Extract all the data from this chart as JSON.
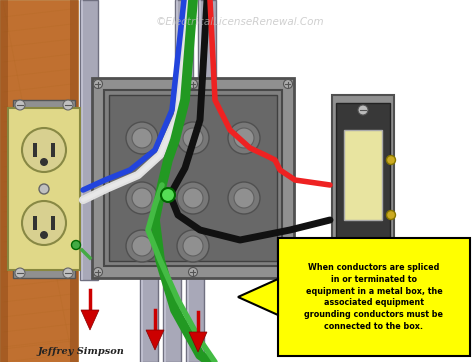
{
  "figsize": [
    4.74,
    3.62
  ],
  "dpi": 100,
  "bg_color": "#ffffff",
  "watermark_text": "©ElectricalLicenseRenewal.Com",
  "watermark_color": "#bbbbbb",
  "author_text": "Jeffrey Simpson",
  "author_color": "#222222",
  "callout_text": "When conductors are spliced\nin or terminated to\nequipment in a metal box, the\nassociated equipment\ngrounding conductors must be\nconnected to the box.",
  "callout_bg": "#ffff00",
  "callout_border": "#000000",
  "callout_text_color": "#000000",
  "wood_color1": "#c07030",
  "wood_color2": "#b06820",
  "box_outer": "#909090",
  "box_inner": "#808080",
  "box_deep": "#686868",
  "conduit_color": "#a8a8b8",
  "conduit_edge": "#707080",
  "conduit_hi": "#d0d0e0",
  "outlet_body": "#e0d888",
  "outlet_dark": "#c8c070",
  "outlet_edge": "#888840",
  "switch_plate": "#909090",
  "switch_body": "#383838",
  "switch_toggle": "#e8e4a0",
  "switch_edge": "#505050",
  "wire_red": "#ee2222",
  "wire_black": "#111111",
  "wire_white": "#e0e0e0",
  "wire_green": "#229922",
  "wire_blue": "#2244dd",
  "wire_green2": "#44bb44",
  "arrow_red": "#cc0000",
  "green_dot": "#55dd55"
}
